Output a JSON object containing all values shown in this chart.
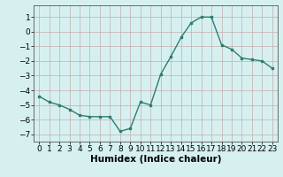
{
  "x": [
    0,
    1,
    2,
    3,
    4,
    5,
    6,
    7,
    8,
    9,
    10,
    11,
    12,
    13,
    14,
    15,
    16,
    17,
    18,
    19,
    20,
    21,
    22,
    23
  ],
  "y": [
    -4.4,
    -4.8,
    -5.0,
    -5.3,
    -5.7,
    -5.8,
    -5.8,
    -5.8,
    -6.8,
    -6.6,
    -4.8,
    -5.0,
    -2.9,
    -1.7,
    -0.4,
    0.6,
    1.0,
    1.0,
    -0.9,
    -1.2,
    -1.8,
    -1.9,
    -2.0,
    -2.5
  ],
  "line_color": "#2e7d6e",
  "marker": "s",
  "markersize": 2.0,
  "linewidth": 1.0,
  "bg_color": "#d6f0f0",
  "grid_color": "#c4adad",
  "xlabel": "Humidex (Indice chaleur)",
  "xlim": [
    -0.5,
    23.5
  ],
  "ylim": [
    -7.5,
    1.8
  ],
  "yticks": [
    1,
    0,
    -1,
    -2,
    -3,
    -4,
    -5,
    -6,
    -7
  ],
  "xtick_labels": [
    "0",
    "1",
    "2",
    "3",
    "4",
    "5",
    "6",
    "7",
    "8",
    "9",
    "10",
    "11",
    "12",
    "13",
    "14",
    "15",
    "16",
    "17",
    "18",
    "19",
    "20",
    "21",
    "22",
    "23"
  ],
  "xlabel_fontsize": 7.5,
  "tick_fontsize": 6.5
}
